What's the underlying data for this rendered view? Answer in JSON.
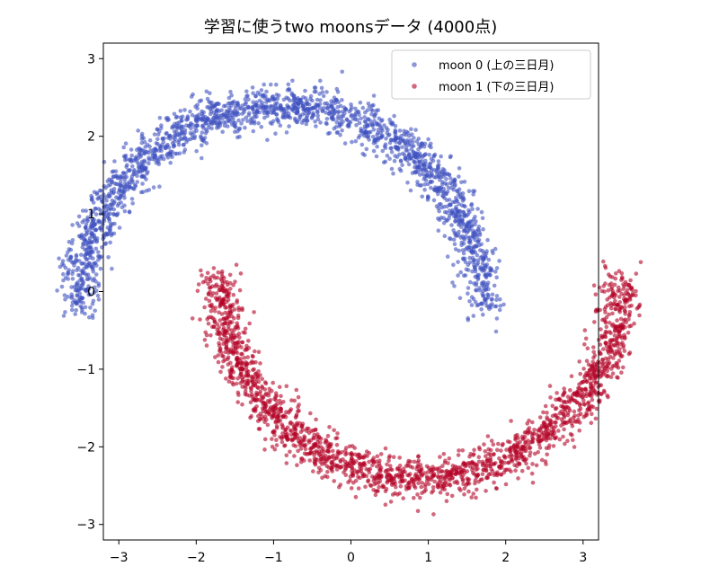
{
  "chart_data": {
    "type": "scatter",
    "title": "学習に使うtwo moonsデータ (4000点)",
    "xlabel": "",
    "ylabel": "",
    "xlim": [
      -3.2,
      3.2
    ],
    "ylim": [
      -3.2,
      3.2
    ],
    "xticks": [
      -3,
      -2,
      -1,
      0,
      1,
      2,
      3
    ],
    "yticks": [
      -3,
      -2,
      -1,
      0,
      1,
      2,
      3
    ],
    "xtick_labels": [
      "−3",
      "−2",
      "−1",
      "0",
      "1",
      "2",
      "3"
    ],
    "ytick_labels": [
      "−3",
      "−2",
      "−1",
      "0",
      "1",
      "2",
      "3"
    ],
    "grid": false,
    "legend_position": "top-right",
    "total_points": 4000,
    "series": [
      {
        "name": "moon 0 (上の三日月)",
        "color": "#3f51c0",
        "shape": "upper arc",
        "center": [
          -0.9,
          -0.2
        ],
        "radius": 2.6,
        "angle_range_deg": [
          0,
          180
        ],
        "noise_sd": 0.13,
        "count": 2000
      },
      {
        "name": "moon 1 (下の三日月)",
        "color": "#b40426",
        "shape": "lower arc",
        "center": [
          0.9,
          0.2
        ],
        "radius": 2.6,
        "angle_range_deg": [
          180,
          360
        ],
        "noise_sd": 0.13,
        "count": 2000
      }
    ]
  }
}
